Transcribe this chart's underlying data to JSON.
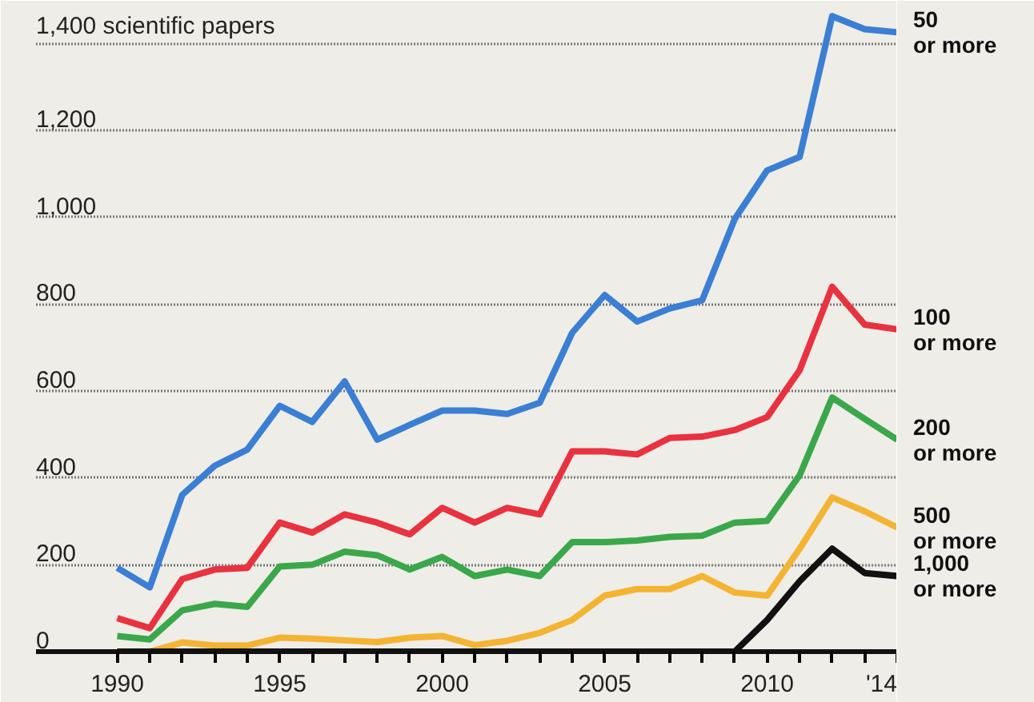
{
  "chart_data": {
    "type": "line",
    "x": [
      1990,
      1991,
      1992,
      1993,
      1994,
      1995,
      1996,
      1997,
      1998,
      1999,
      2000,
      2001,
      2002,
      2003,
      2004,
      2005,
      2006,
      2007,
      2008,
      2009,
      2010,
      2011,
      2012,
      2013,
      2014
    ],
    "series": [
      {
        "name": "50\nor more",
        "color": "#3b7fd4",
        "values": [
          193,
          148,
          361,
          428,
          465,
          566,
          529,
          622,
          488,
          522,
          555,
          555,
          547,
          573,
          734,
          821,
          760,
          790,
          809,
          996,
          1108,
          1139,
          1463,
          1433,
          1426
        ]
      },
      {
        "name": "100\nor more",
        "color": "#e8323f",
        "values": [
          77,
          54,
          167,
          189,
          193,
          297,
          274,
          316,
          297,
          270,
          331,
          297,
          331,
          316,
          461,
          461,
          454,
          492,
          495,
          510,
          540,
          648,
          840,
          753,
          742
        ]
      },
      {
        "name": "200\nor more",
        "color": "#3aa84a",
        "values": [
          36,
          28,
          95,
          110,
          103,
          196,
          200,
          230,
          222,
          189,
          218,
          174,
          189,
          174,
          252,
          252,
          256,
          264,
          267,
          297,
          301,
          406,
          585,
          536,
          488
        ]
      },
      {
        "name": "500\nor more",
        "color": "#f4b433",
        "values": [
          0,
          0,
          21,
          14,
          14,
          32,
          30,
          26,
          22,
          32,
          36,
          15,
          25,
          43,
          73,
          129,
          144,
          144,
          174,
          136,
          129,
          237,
          355,
          323,
          286
        ]
      },
      {
        "name": "1,000\nor more",
        "color": "#111111",
        "values": [
          0,
          0,
          0,
          0,
          0,
          0,
          0,
          0,
          0,
          0,
          0,
          0,
          0,
          0,
          0,
          0,
          0,
          0,
          0,
          0,
          73,
          162,
          237,
          181,
          174
        ]
      }
    ],
    "xlim": [
      1987.5,
      2014
    ],
    "ylim": [
      0,
      1480
    ],
    "xticks": [
      1990,
      {
        "value": 1991,
        "label": null
      },
      {
        "value": 1992,
        "label": null
      },
      {
        "value": 1993,
        "label": null
      },
      {
        "value": 1994,
        "label": null
      },
      1995,
      {
        "value": 1996,
        "label": null
      },
      {
        "value": 1997,
        "label": null
      },
      {
        "value": 1998,
        "label": null
      },
      {
        "value": 1999,
        "label": null
      },
      2000,
      {
        "value": 2001,
        "label": null
      },
      {
        "value": 2002,
        "label": null
      },
      {
        "value": 2003,
        "label": null
      },
      {
        "value": 2004,
        "label": null
      },
      2005,
      {
        "value": 2006,
        "label": null
      },
      {
        "value": 2007,
        "label": null
      },
      {
        "value": 2008,
        "label": null
      },
      {
        "value": 2009,
        "label": null
      },
      2010,
      {
        "value": 2011,
        "label": null
      },
      {
        "value": 2012,
        "label": null
      },
      {
        "value": 2013,
        "label": null
      },
      {
        "value": 2014,
        "label": "'14"
      }
    ],
    "yticks": [
      0,
      200,
      400,
      600,
      800,
      {
        "value": 1000,
        "label": "1,000"
      },
      {
        "value": 1200,
        "label": "1,200"
      },
      {
        "value": 1400,
        "label": "1,400 scientific papers"
      }
    ],
    "grid": "y",
    "line_style": "solid",
    "marker": "none"
  }
}
